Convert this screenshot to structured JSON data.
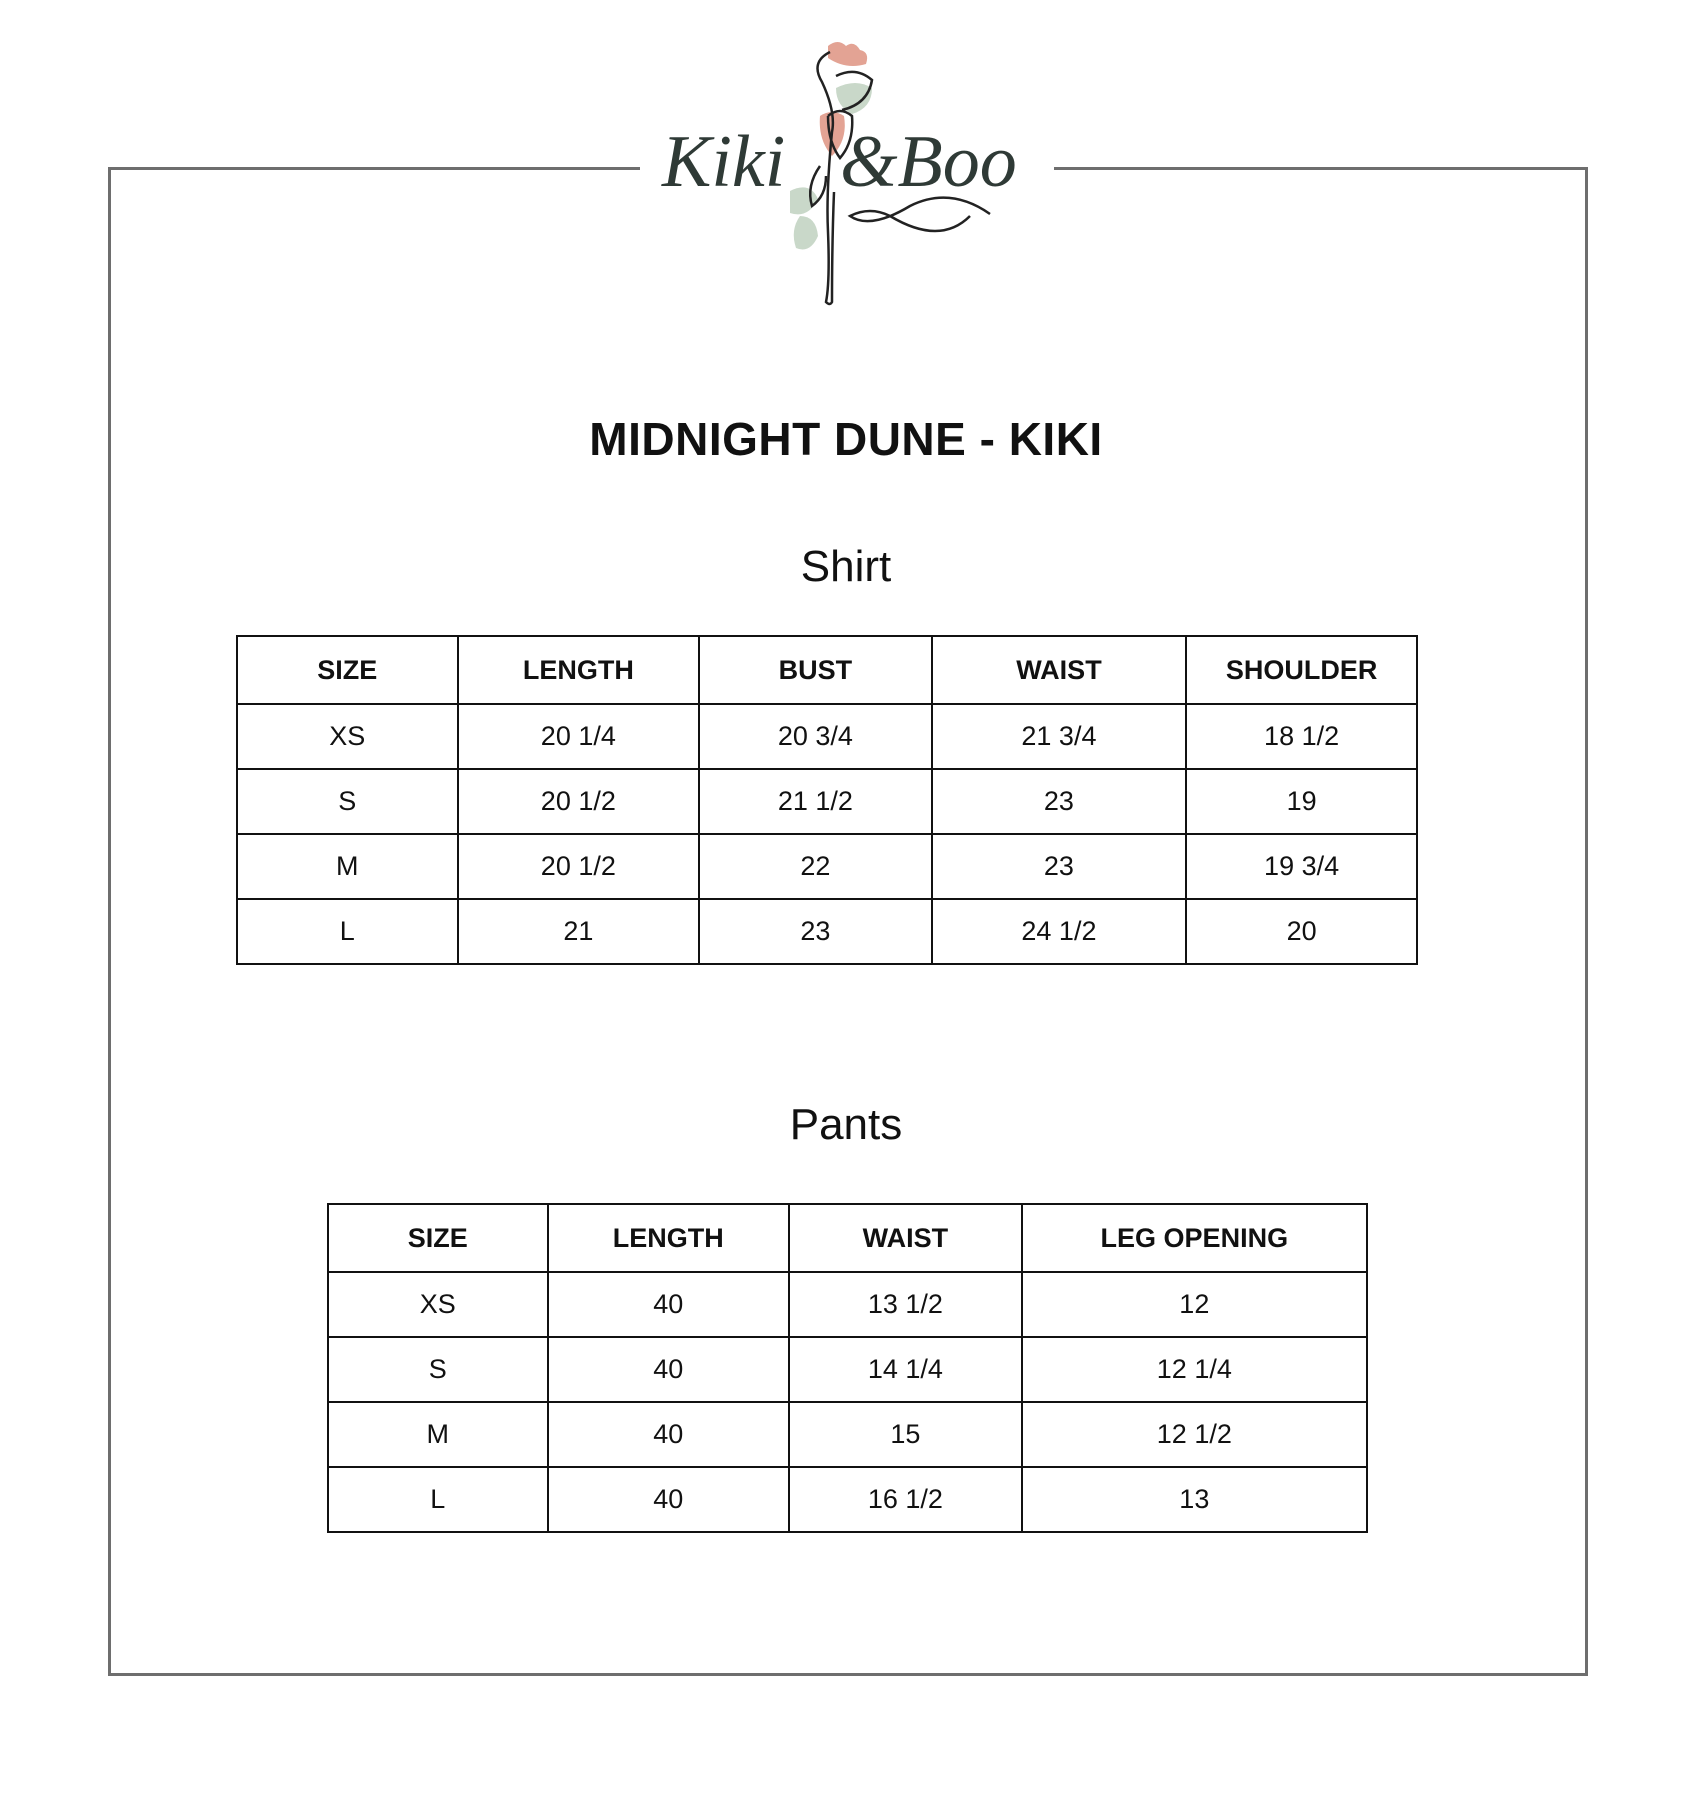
{
  "brand": {
    "logo_text": "Kiki&Boo",
    "colors": {
      "rose": "#e3a394",
      "leaf": "#c9d8c9",
      "ink": "#2f3a36",
      "frame": "#6e6e6e"
    }
  },
  "title": "MIDNIGHT DUNE - KIKI",
  "shirt": {
    "heading": "Shirt",
    "columns": [
      "SIZE",
      "LENGTH",
      "BUST",
      "WAIST",
      "SHOULDER"
    ],
    "rows": [
      [
        "XS",
        "20 1/4",
        "20 3/4",
        "21 3/4",
        "18 1/2"
      ],
      [
        "S",
        "20 1/2",
        "21 1/2",
        "23",
        "19"
      ],
      [
        "M",
        "20 1/2",
        "22",
        "23",
        "19 3/4"
      ],
      [
        "L",
        "21",
        "23",
        "24 1/2",
        "20"
      ]
    ]
  },
  "pants": {
    "heading": "Pants",
    "columns": [
      "SIZE",
      "LENGTH",
      "WAIST",
      "LEG OPENING"
    ],
    "rows": [
      [
        "XS",
        "40",
        "13 1/2",
        "12"
      ],
      [
        "S",
        "40",
        "14 1/4",
        "12 1/4"
      ],
      [
        "M",
        "40",
        "15",
        "12 1/2"
      ],
      [
        "L",
        "40",
        "16 1/2",
        "13"
      ]
    ]
  }
}
